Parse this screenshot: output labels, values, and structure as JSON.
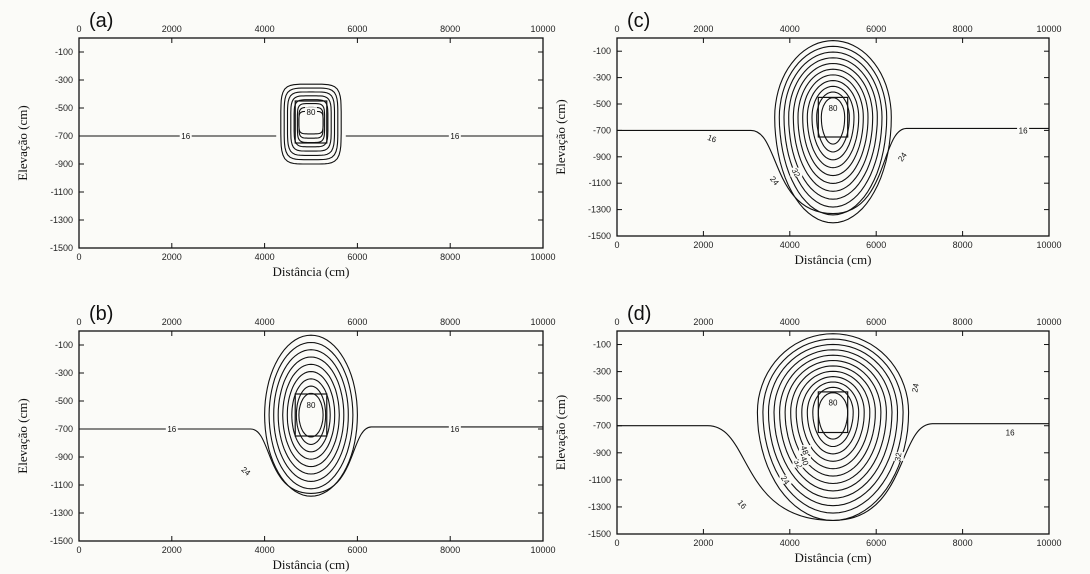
{
  "chart_data": [
    {
      "panel_label": "(a)",
      "type": "contour",
      "xlabel": "Distância (cm)",
      "ylabel": "Elevação (cm)",
      "xlim": [
        0,
        10000
      ],
      "ylim": [
        -1500,
        0
      ],
      "x_ticks": [
        "0",
        "2000",
        "4000",
        "6000",
        "8000",
        "10000"
      ],
      "y_ticks": [
        "-100",
        "-300",
        "-500",
        "-700",
        "-900",
        "-1100",
        "-1300",
        "-1500"
      ],
      "source_center": [
        5000,
        -600
      ],
      "contour_labels": [
        "16",
        "16",
        "80"
      ],
      "background_line": {
        "level": 16,
        "elevation": -700
      },
      "plume": {
        "rx_outer": 650,
        "top": -330,
        "bottom": -900,
        "n_rings": 8,
        "shape": "octagon"
      }
    },
    {
      "panel_label": "(b)",
      "type": "contour",
      "xlabel": "Distância (cm)",
      "ylabel": "Elevação (cm)",
      "xlim": [
        0,
        10000
      ],
      "ylim": [
        -1500,
        0
      ],
      "x_ticks": [
        "0",
        "2000",
        "4000",
        "6000",
        "8000",
        "10000"
      ],
      "y_ticks": [
        "-100",
        "-300",
        "-500",
        "-700",
        "-900",
        "-1100",
        "-1300",
        "-1500"
      ],
      "source_center": [
        5000,
        -600
      ],
      "contour_labels": [
        "16",
        "16",
        "24",
        "80"
      ],
      "background_line": {
        "level": 16,
        "elevation": -700
      },
      "plume": {
        "rx_outer": 1000,
        "top": -30,
        "bottom": -1180,
        "n_rings": 9,
        "shape": "oval"
      }
    },
    {
      "panel_label": "(c)",
      "type": "contour",
      "xlabel": "Distância (cm)",
      "ylabel": "Elevação (cm)",
      "xlim": [
        0,
        10000
      ],
      "ylim": [
        -1500,
        0
      ],
      "x_ticks": [
        "0",
        "2000",
        "4000",
        "6000",
        "8000",
        "10000"
      ],
      "y_ticks": [
        "-100",
        "-300",
        "-500",
        "-700",
        "-900",
        "-1100",
        "-1300",
        "-1500"
      ],
      "source_center": [
        5000,
        -600
      ],
      "contour_labels": [
        "16",
        "16",
        "24",
        "24",
        "32",
        "80"
      ],
      "background_line": {
        "level": 16,
        "elevation": -700
      },
      "plume": {
        "rx_outer": 1350,
        "top": -20,
        "bottom": -1400,
        "n_rings": 11,
        "shape": "oval"
      }
    },
    {
      "panel_label": "(d)",
      "type": "contour",
      "xlabel": "Distância (cm)",
      "ylabel": "Elevação (cm)",
      "xlim": [
        0,
        10000
      ],
      "ylim": [
        -1500,
        0
      ],
      "x_ticks": [
        "0",
        "2000",
        "4000",
        "6000",
        "8000",
        "10000"
      ],
      "y_ticks": [
        "-100",
        "-300",
        "-500",
        "-700",
        "-900",
        "-1100",
        "-1300",
        "-1500"
      ],
      "source_center": [
        5000,
        -600
      ],
      "contour_labels": [
        "16",
        "16",
        "24",
        "24",
        "32",
        "32",
        "40",
        "48",
        "80"
      ],
      "background_line": {
        "level": 16,
        "elevation": -700
      },
      "plume": {
        "rx_outer": 1750,
        "top": -20,
        "bottom": -1400,
        "n_rings": 12,
        "shape": "oval"
      }
    }
  ],
  "colors": {
    "line": "#111111",
    "frame": "#111111",
    "background": "#fbfbf8"
  }
}
